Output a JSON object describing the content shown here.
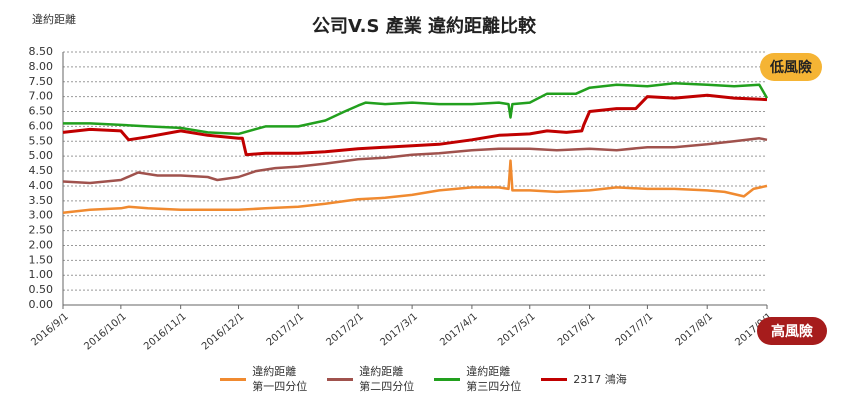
{
  "chart_data": {
    "type": "line",
    "title": "公司V.S 產業 違約距離比較",
    "y_axis_label": "違約距離",
    "annotations": [
      "低風險",
      "高風險"
    ],
    "grid": true,
    "legend": "bottom",
    "xlim": [
      "2016/9/1",
      "2017/9/1"
    ],
    "xticks": [
      "2016/9/1",
      "2016/10/1",
      "2016/11/1",
      "2016/12/1",
      "2017/1/1",
      "2017/2/1",
      "2017/3/1",
      "2017/4/1",
      "2017/5/1",
      "2017/6/1",
      "2017/7/1",
      "2017/8/1",
      "2017/9/1"
    ],
    "ylim": [
      0,
      8.5
    ],
    "yticks": [
      {
        "value": 0,
        "label": "0.00"
      },
      {
        "value": 0.5,
        "label": "0.50"
      },
      {
        "value": 1,
        "label": "1.00"
      },
      {
        "value": 1.5,
        "label": "1.50"
      },
      {
        "value": 2,
        "label": "2.00"
      },
      {
        "value": 2.5,
        "label": "2.50"
      },
      {
        "value": 3,
        "label": "3.00"
      },
      {
        "value": 3.5,
        "label": "3.50"
      },
      {
        "value": 4,
        "label": "4.00"
      },
      {
        "value": 4.5,
        "label": "4.50"
      },
      {
        "value": 5,
        "label": "5.00"
      },
      {
        "value": 5.5,
        "label": "5.50"
      },
      {
        "value": 6,
        "label": "6.00"
      },
      {
        "value": 6.5,
        "label": "6.50"
      },
      {
        "value": 7,
        "label": "7.00"
      },
      {
        "value": 7.5,
        "label": "7.50"
      },
      {
        "value": 8,
        "label": "8.00"
      },
      {
        "value": 8.5,
        "label": "8.50"
      }
    ],
    "series": [
      {
        "name": "違約距離\n第一四分位",
        "color": "#f08a30",
        "x": [
          "2016/9/1",
          "2016/9/15",
          "2016/10/1",
          "2016/10/5",
          "2016/10/15",
          "2016/11/1",
          "2016/11/15",
          "2016/12/1",
          "2016/12/15",
          "2017/1/1",
          "2017/1/15",
          "2017/2/1",
          "2017/2/15",
          "2017/3/1",
          "2017/3/15",
          "2017/4/1",
          "2017/4/15",
          "2017/4/20",
          "2017/4/21",
          "2017/4/22",
          "2017/5/1",
          "2017/5/15",
          "2017/6/1",
          "2017/6/15",
          "2017/7/1",
          "2017/7/15",
          "2017/8/1",
          "2017/8/10",
          "2017/8/20",
          "2017/8/25",
          "2017/9/1"
        ],
        "values": [
          3.1,
          3.2,
          3.25,
          3.3,
          3.25,
          3.2,
          3.2,
          3.2,
          3.25,
          3.3,
          3.4,
          3.55,
          3.6,
          3.7,
          3.85,
          3.95,
          3.95,
          3.9,
          4.85,
          3.85,
          3.85,
          3.8,
          3.85,
          3.95,
          3.9,
          3.9,
          3.85,
          3.8,
          3.65,
          3.9,
          4.0
        ]
      },
      {
        "name": "違約距離\n第二四分位",
        "color": "#a0524d",
        "x": [
          "2016/9/1",
          "2016/9/15",
          "2016/10/1",
          "2016/10/10",
          "2016/10/20",
          "2016/11/1",
          "2016/11/15",
          "2016/11/20",
          "2016/12/1",
          "2016/12/10",
          "2016/12/20",
          "2017/1/1",
          "2017/1/15",
          "2017/2/1",
          "2017/2/15",
          "2017/3/1",
          "2017/3/15",
          "2017/4/1",
          "2017/4/15",
          "2017/5/1",
          "2017/5/15",
          "2017/6/1",
          "2017/6/15",
          "2017/7/1",
          "2017/7/15",
          "2017/8/1",
          "2017/8/15",
          "2017/8/28",
          "2017/9/1"
        ],
        "values": [
          4.15,
          4.1,
          4.2,
          4.45,
          4.35,
          4.35,
          4.3,
          4.2,
          4.3,
          4.5,
          4.6,
          4.65,
          4.75,
          4.9,
          4.95,
          5.05,
          5.1,
          5.2,
          5.25,
          5.25,
          5.2,
          5.25,
          5.2,
          5.3,
          5.3,
          5.4,
          5.5,
          5.6,
          5.55
        ]
      },
      {
        "name": "違約距離\n第三四分位",
        "color": "#22a01e",
        "x": [
          "2016/9/1",
          "2016/9/15",
          "2016/10/1",
          "2016/10/15",
          "2016/11/1",
          "2016/11/15",
          "2016/12/1",
          "2016/12/15",
          "2017/1/1",
          "2017/1/15",
          "2017/1/25",
          "2017/2/1",
          "2017/2/5",
          "2017/2/15",
          "2017/3/1",
          "2017/3/15",
          "2017/4/1",
          "2017/4/15",
          "2017/4/20",
          "2017/4/21",
          "2017/4/22",
          "2017/5/1",
          "2017/5/10",
          "2017/5/25",
          "2017/6/1",
          "2017/6/15",
          "2017/7/1",
          "2017/7/15",
          "2017/8/1",
          "2017/8/15",
          "2017/8/28",
          "2017/9/1"
        ],
        "values": [
          6.1,
          6.1,
          6.05,
          6.0,
          5.95,
          5.8,
          5.75,
          6.0,
          6.0,
          6.2,
          6.5,
          6.7,
          6.8,
          6.75,
          6.8,
          6.75,
          6.75,
          6.8,
          6.75,
          6.3,
          6.75,
          6.8,
          7.1,
          7.1,
          7.3,
          7.4,
          7.35,
          7.45,
          7.4,
          7.35,
          7.4,
          6.95
        ]
      },
      {
        "name": "2317 鴻海",
        "color": "#c00000",
        "x": [
          "2016/9/1",
          "2016/9/15",
          "2016/10/1",
          "2016/10/5",
          "2016/10/15",
          "2016/11/1",
          "2016/11/15",
          "2016/12/1",
          "2016/12/3",
          "2016/12/5",
          "2016/12/15",
          "2017/1/1",
          "2017/1/15",
          "2017/2/1",
          "2017/2/15",
          "2017/3/1",
          "2017/3/15",
          "2017/4/1",
          "2017/4/15",
          "2017/5/1",
          "2017/5/10",
          "2017/5/20",
          "2017/5/28",
          "2017/5/29",
          "2017/6/1",
          "2017/6/15",
          "2017/6/25",
          "2017/7/1",
          "2017/7/15",
          "2017/8/1",
          "2017/8/15",
          "2017/9/1"
        ],
        "values": [
          5.8,
          5.9,
          5.85,
          5.55,
          5.65,
          5.85,
          5.7,
          5.6,
          5.6,
          5.05,
          5.1,
          5.1,
          5.15,
          5.25,
          5.3,
          5.35,
          5.4,
          5.55,
          5.7,
          5.75,
          5.85,
          5.8,
          5.85,
          6.05,
          6.5,
          6.6,
          6.6,
          7.0,
          6.95,
          7.05,
          6.95,
          6.9
        ]
      }
    ]
  }
}
